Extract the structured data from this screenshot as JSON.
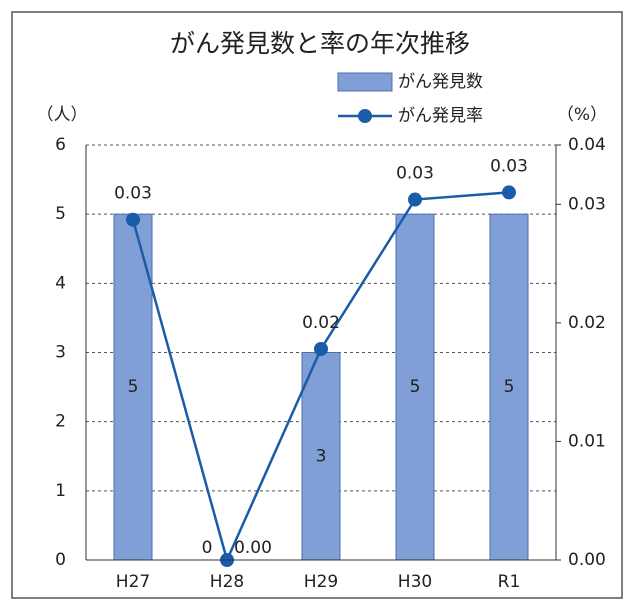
{
  "chart_data": {
    "type": "bar",
    "title": "がん発見数と率の年次推移",
    "y_label": "（人）",
    "y2_label": "（%）",
    "categories": [
      "H27",
      "H28",
      "H29",
      "H30",
      "R1"
    ],
    "series": [
      {
        "name": "がん発見数",
        "type": "bar",
        "color": "#7f9fd6",
        "values": [
          5,
          0,
          3,
          5,
          5
        ]
      },
      {
        "name": "がん発見率",
        "type": "line",
        "axis": "y2",
        "color": "#1a5ca8",
        "values": [
          0.0287,
          0,
          0.0178,
          0.0304,
          0.031
        ],
        "value_labels": [
          "0.03",
          "0.00",
          "0.02",
          "0.03",
          "0.03"
        ]
      }
    ],
    "ylim": [
      0,
      6
    ],
    "yticks": [
      0,
      1,
      2,
      3,
      4,
      5,
      6
    ],
    "y2lim": [
      0,
      0.035
    ],
    "y2ticks": [
      {
        "value": 0,
        "label": "0.00"
      },
      {
        "value": 0.01,
        "label": "0.01"
      },
      {
        "value": 0.02,
        "label": "0.02"
      },
      {
        "value": 0.03,
        "label": "0.03"
      },
      {
        "value": 0.035,
        "label": "0.04"
      }
    ],
    "grid": true
  }
}
